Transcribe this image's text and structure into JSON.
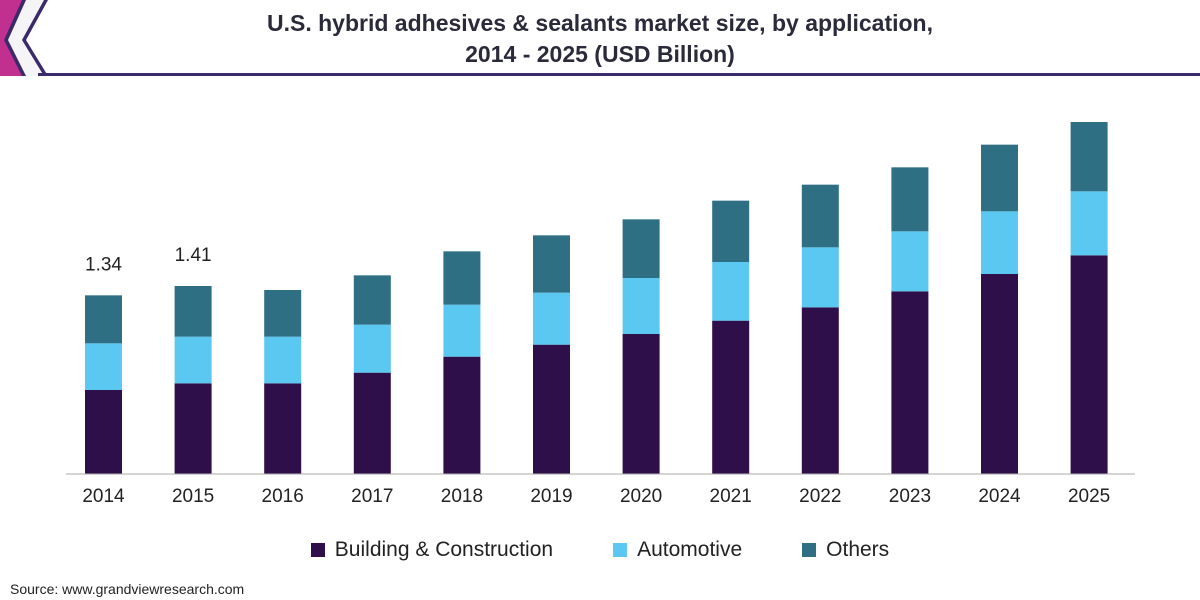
{
  "header": {
    "title_line1": "U.S. hybrid adhesives & sealants market size, by application,",
    "title_line2": "2014 - 2025 (USD Billion)"
  },
  "source": "Source: www.grandviewresearch.com",
  "chart_data": {
    "type": "bar",
    "stacked": true,
    "title": "U.S. hybrid adhesives & sealants market size, by application, 2014 - 2025 (USD Billion)",
    "xlabel": "",
    "ylabel": "",
    "ylim": [
      0,
      2.7
    ],
    "grid": false,
    "legend_position": "bottom",
    "categories": [
      "2014",
      "2015",
      "2016",
      "2017",
      "2018",
      "2019",
      "2020",
      "2021",
      "2022",
      "2023",
      "2024",
      "2025"
    ],
    "series": [
      {
        "name": "Building & Construction",
        "color": "#2e0f4a",
        "values": [
          0.63,
          0.68,
          0.68,
          0.76,
          0.88,
          0.97,
          1.05,
          1.15,
          1.25,
          1.37,
          1.5,
          1.64
        ]
      },
      {
        "name": "Automotive",
        "color": "#5bc8f2",
        "values": [
          0.35,
          0.35,
          0.35,
          0.36,
          0.39,
          0.39,
          0.42,
          0.44,
          0.45,
          0.45,
          0.47,
          0.48
        ]
      },
      {
        "name": "Others",
        "color": "#2f6f84",
        "values": [
          0.36,
          0.38,
          0.35,
          0.37,
          0.4,
          0.43,
          0.44,
          0.46,
          0.47,
          0.48,
          0.5,
          0.52
        ]
      }
    ],
    "data_labels": [
      {
        "category": "2014",
        "text": "1.34"
      },
      {
        "category": "2015",
        "text": "1.41"
      }
    ]
  },
  "colors": {
    "accent": "#3b2a6b"
  },
  "icons": {
    "corner": "corner-banner-icon"
  }
}
